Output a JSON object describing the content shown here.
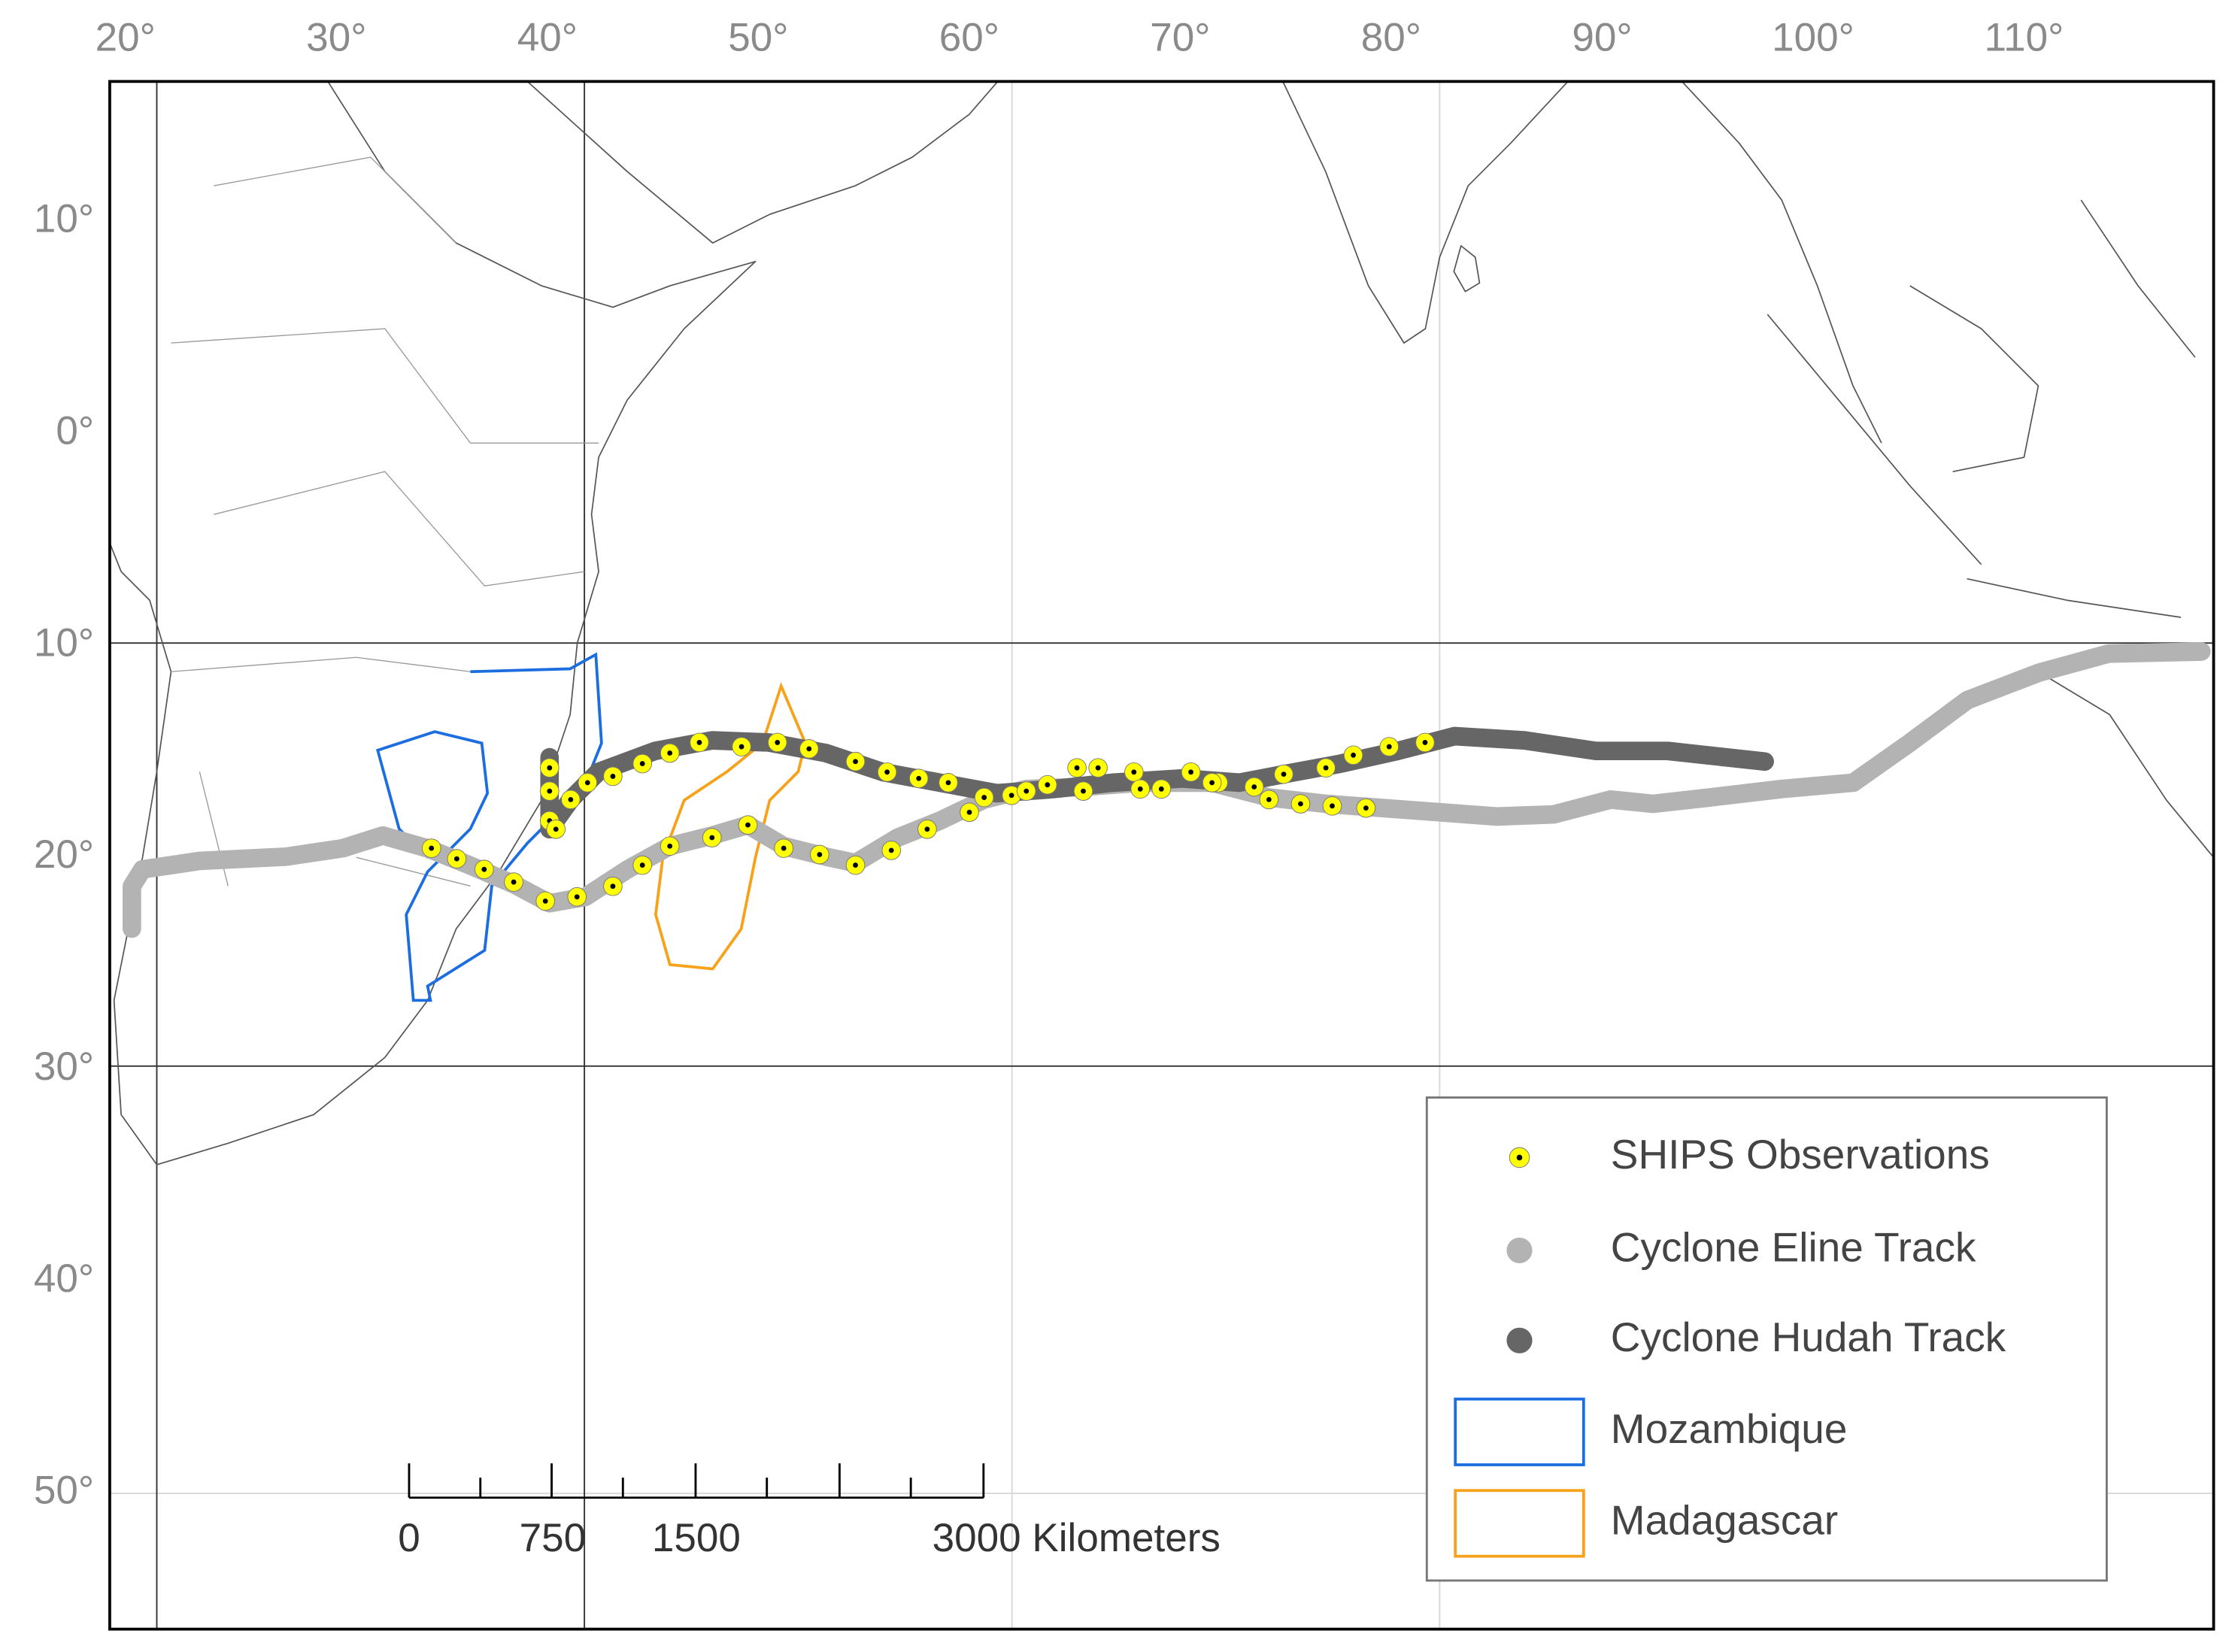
{
  "map": {
    "lon_labels": [
      "20°",
      "30°",
      "40°",
      "50°",
      "60°",
      "70°",
      "80°",
      "90°",
      "100°",
      "110°"
    ],
    "lat_labels": [
      "10°",
      "0°",
      "10°",
      "20°",
      "30°",
      "40°",
      "50°"
    ],
    "series": [
      {
        "name": "SHIPS Observations",
        "color": "#ffff00",
        "lon": [
          39.7,
          39.7,
          39.7,
          40.0,
          40.7,
          41.5,
          42.7,
          44.1,
          45.4,
          46.8,
          48.8,
          50.5,
          52.0,
          54.2,
          55.7,
          57.2,
          58.6,
          60.3,
          61.6,
          63.3,
          64.7,
          65.7,
          67.4,
          68.7,
          70.1,
          71.4,
          73.1,
          74.5,
          76.5,
          77.8,
          79.5,
          81.2,
          34.1,
          35.3,
          36.6,
          38.0,
          39.5,
          41.0,
          42.7,
          44.1,
          45.4,
          47.4,
          49.1,
          50.8,
          52.5,
          54.2,
          55.9,
          57.6,
          59.6,
          62.3,
          65.0,
          67.7,
          71.1,
          73.8,
          75.3,
          76.8,
          78.4
        ],
        "lat": [
          -15.9,
          -17.0,
          -18.4,
          -18.8,
          -17.4,
          -16.6,
          -16.3,
          -15.7,
          -15.2,
          -14.7,
          -14.9,
          -14.7,
          -15.0,
          -15.6,
          -16.1,
          -16.4,
          -16.6,
          -17.3,
          -17.2,
          -16.7,
          -15.9,
          -15.9,
          -16.1,
          -16.9,
          -16.1,
          -16.6,
          -16.8,
          -16.2,
          -15.9,
          -15.3,
          -14.9,
          -14.7,
          -19.7,
          -20.2,
          -20.7,
          -21.3,
          -22.2,
          -22.0,
          -21.5,
          -20.5,
          -19.6,
          -19.2,
          -18.6,
          -19.7,
          -20.0,
          -20.5,
          -19.8,
          -18.8,
          -18.0,
          -17.0,
          -17.0,
          -16.9,
          -16.6,
          -17.4,
          -17.6,
          -17.7,
          -17.8
        ]
      },
      {
        "name": "Cyclone Eline Track",
        "color": "#b3b3b3",
        "lon": [
          19.9,
          19.9,
          20.4,
          23.1,
          27.2,
          29.9,
          31.8,
          33.9,
          35.9,
          38.0,
          39.7,
          41.4,
          43.4,
          45.4,
          47.4,
          49.1,
          50.8,
          52.8,
          54.2,
          56.2,
          58.2,
          60.3,
          62.3,
          65.0,
          67.7,
          71.1,
          73.8,
          76.5,
          79.2,
          81.9,
          84.6,
          87.3,
          90.0,
          92.0,
          94.7,
          98.1,
          101.5,
          104.2,
          106.9,
          110.3,
          113.6,
          118.0
        ],
        "lat": [
          -23.5,
          -21.5,
          -20.7,
          -20.3,
          -20.1,
          -19.7,
          -19.1,
          -19.7,
          -20.5,
          -21.4,
          -22.3,
          -22.0,
          -20.7,
          -19.6,
          -19.1,
          -18.6,
          -19.6,
          -20.1,
          -20.4,
          -19.2,
          -18.4,
          -17.4,
          -16.9,
          -16.8,
          -16.6,
          -16.6,
          -17.3,
          -17.6,
          -17.8,
          -18.0,
          -18.2,
          -18.1,
          -17.4,
          -17.6,
          -17.3,
          -16.9,
          -16.6,
          -14.7,
          -12.7,
          -11.4,
          -10.5,
          -10.4
        ]
      },
      {
        "name": "Cyclone Hudah Track",
        "color": "#666666",
        "lon": [
          39.7,
          39.7,
          40.7,
          42.0,
          44.7,
          47.4,
          50.1,
          52.8,
          55.5,
          58.2,
          60.9,
          63.6,
          66.4,
          69.7,
          72.4,
          74.5,
          77.2,
          79.9,
          82.6,
          85.9,
          89.3,
          92.7,
          97.3
        ],
        "lat": [
          -15.4,
          -18.8,
          -17.4,
          -16.1,
          -15.1,
          -14.6,
          -14.7,
          -15.2,
          -16.1,
          -16.6,
          -17.1,
          -16.9,
          -16.6,
          -16.4,
          -16.6,
          -16.2,
          -15.7,
          -15.1,
          -14.4,
          -14.6,
          -15.1,
          -15.1,
          -15.6
        ]
      }
    ],
    "regions": [
      {
        "name": "Mozambique",
        "color": "#1c6ee0"
      },
      {
        "name": "Madagascar",
        "color": "#f7a21b"
      }
    ],
    "scale_bar": {
      "ticks": [
        0,
        750,
        1500,
        {
          "value": 3000,
          "label": "3000 Kilometers"
        }
      ]
    }
  }
}
